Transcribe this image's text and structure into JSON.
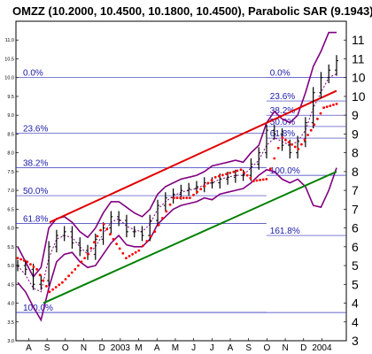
{
  "chart_data": {
    "type": "line",
    "title": "OMZZ (10.2000, 10.4500, 10.1800, 10.4500), Parabolic SAR (9.1943)",
    "ohlc": {
      "open": 10.2,
      "high": 10.45,
      "low": 10.18,
      "close": 10.45
    },
    "indicator": {
      "name": "Parabolic SAR",
      "value": 9.1943
    },
    "ylim": [
      3,
      11.5
    ],
    "right_ticks": [
      "3",
      "4",
      "4",
      "5",
      "5",
      "6",
      "6",
      "7",
      "7",
      "8",
      "8",
      "9",
      "9",
      "10",
      "10",
      "11",
      "11"
    ],
    "left_ticks": [
      "3.0",
      "3.5",
      "4.0",
      "4.5",
      "5.0",
      "5.5",
      "6.0",
      "6.5",
      "7.0",
      "7.5",
      "8.0",
      "8.5",
      "9.0",
      "9.5",
      "10.0",
      "10.5",
      "11.0"
    ],
    "x_labels": [
      "A",
      "S",
      "O",
      "N",
      "D",
      "2003",
      "M",
      "A",
      "M",
      "J",
      "J",
      "A",
      "S",
      "O",
      "N",
      "D",
      "2004"
    ],
    "fib_left": [
      {
        "label": "0.0%",
        "value": 10.0
      },
      {
        "label": "23.6%",
        "value": 8.52
      },
      {
        "label": "38.2%",
        "value": 7.6
      },
      {
        "label": "50.0%",
        "value": 6.86
      },
      {
        "label": "61.8%",
        "value": 6.12
      },
      {
        "label": "100.0%",
        "value": 3.75
      }
    ],
    "fib_right": [
      {
        "label": "0.0%",
        "value": 10.0
      },
      {
        "label": "23.6%",
        "value": 9.38
      },
      {
        "label": "38.2%",
        "value": 9.0
      },
      {
        "label": "50.0%",
        "value": 8.7
      },
      {
        "label": "61.8%",
        "value": 8.39
      },
      {
        "label": "100.0%",
        "value": 7.4
      },
      {
        "label": "161.8%",
        "value": 5.8
      }
    ],
    "trendlines": [
      {
        "color": "#e00000",
        "from": [
          0.0,
          6.15
        ],
        "to": [
          1.0,
          9.65
        ]
      },
      {
        "color": "#008000",
        "from": [
          0.0,
          4.0
        ],
        "to": [
          1.0,
          7.5
        ]
      }
    ],
    "bollinger_upper": [
      5.5,
      5.1,
      4.7,
      4.95,
      6.0,
      6.25,
      6.3,
      6.15,
      5.9,
      5.75,
      6.0,
      6.4,
      6.7,
      6.7,
      6.55,
      6.4,
      6.3,
      6.5,
      6.9,
      7.1,
      7.2,
      7.3,
      7.35,
      7.4,
      7.5,
      7.65,
      7.7,
      7.75,
      7.8,
      7.75,
      8.0,
      8.2,
      8.8,
      9.1,
      8.9,
      8.8,
      9.0,
      9.6,
      10.3,
      10.7,
      11.2,
      11.2
    ],
    "bollinger_mid": [
      5.0,
      4.75,
      4.4,
      4.3,
      5.2,
      5.7,
      5.8,
      5.75,
      5.5,
      5.3,
      5.5,
      5.85,
      6.15,
      6.25,
      6.05,
      5.95,
      5.9,
      6.1,
      6.5,
      6.7,
      6.85,
      6.95,
      7.0,
      7.05,
      7.15,
      7.2,
      7.3,
      7.35,
      7.4,
      7.4,
      7.6,
      7.8,
      8.2,
      8.4,
      8.3,
      8.2,
      8.3,
      8.6,
      9.2,
      9.6,
      10.0,
      10.1
    ],
    "bollinger_lower": [
      4.55,
      4.3,
      3.9,
      3.55,
      4.4,
      5.1,
      5.3,
      5.35,
      5.1,
      4.95,
      5.0,
      5.3,
      5.6,
      5.8,
      5.55,
      5.5,
      5.5,
      5.7,
      6.1,
      6.3,
      6.5,
      6.6,
      6.65,
      6.7,
      6.8,
      6.75,
      6.9,
      6.95,
      7.0,
      7.05,
      7.2,
      7.4,
      7.55,
      7.5,
      7.3,
      7.2,
      7.3,
      7.1,
      6.6,
      6.55,
      7.0,
      7.6
    ],
    "price": [
      5.0,
      4.9,
      4.5,
      4.6,
      5.5,
      5.8,
      5.9,
      5.6,
      5.4,
      5.3,
      5.7,
      6.0,
      6.3,
      6.2,
      5.9,
      5.9,
      5.8,
      6.2,
      6.6,
      6.8,
      6.9,
      7.0,
      7.05,
      7.1,
      7.2,
      7.2,
      7.3,
      7.35,
      7.4,
      7.4,
      7.7,
      8.0,
      8.6,
      8.5,
      8.2,
      8.0,
      8.3,
      8.8,
      9.6,
      10.0,
      10.2,
      10.45
    ],
    "sar": [
      {
        "t": 0.0,
        "v": 5.2
      },
      {
        "t": 0.03,
        "v": 5.1
      },
      {
        "t": 0.06,
        "v": 4.9
      },
      {
        "t": 0.1,
        "v": 4.3
      },
      {
        "t": 0.14,
        "v": 4.55
      },
      {
        "t": 0.18,
        "v": 4.9
      },
      {
        "t": 0.22,
        "v": 5.3
      },
      {
        "t": 0.27,
        "v": 6.1
      },
      {
        "t": 0.3,
        "v": 5.7
      },
      {
        "t": 0.34,
        "v": 5.2
      },
      {
        "t": 0.38,
        "v": 5.4
      },
      {
        "t": 0.43,
        "v": 5.9
      },
      {
        "t": 0.49,
        "v": 6.8
      },
      {
        "t": 0.54,
        "v": 6.8
      },
      {
        "t": 0.62,
        "v": 7.35
      },
      {
        "t": 0.7,
        "v": 7.55
      },
      {
        "t": 0.74,
        "v": 7.25
      },
      {
        "t": 0.78,
        "v": 7.3
      },
      {
        "t": 0.83,
        "v": 8.4
      },
      {
        "t": 0.88,
        "v": 8.1
      },
      {
        "t": 0.92,
        "v": 8.6
      },
      {
        "t": 0.96,
        "v": 9.2
      },
      {
        "t": 1.0,
        "v": 9.3
      }
    ]
  }
}
